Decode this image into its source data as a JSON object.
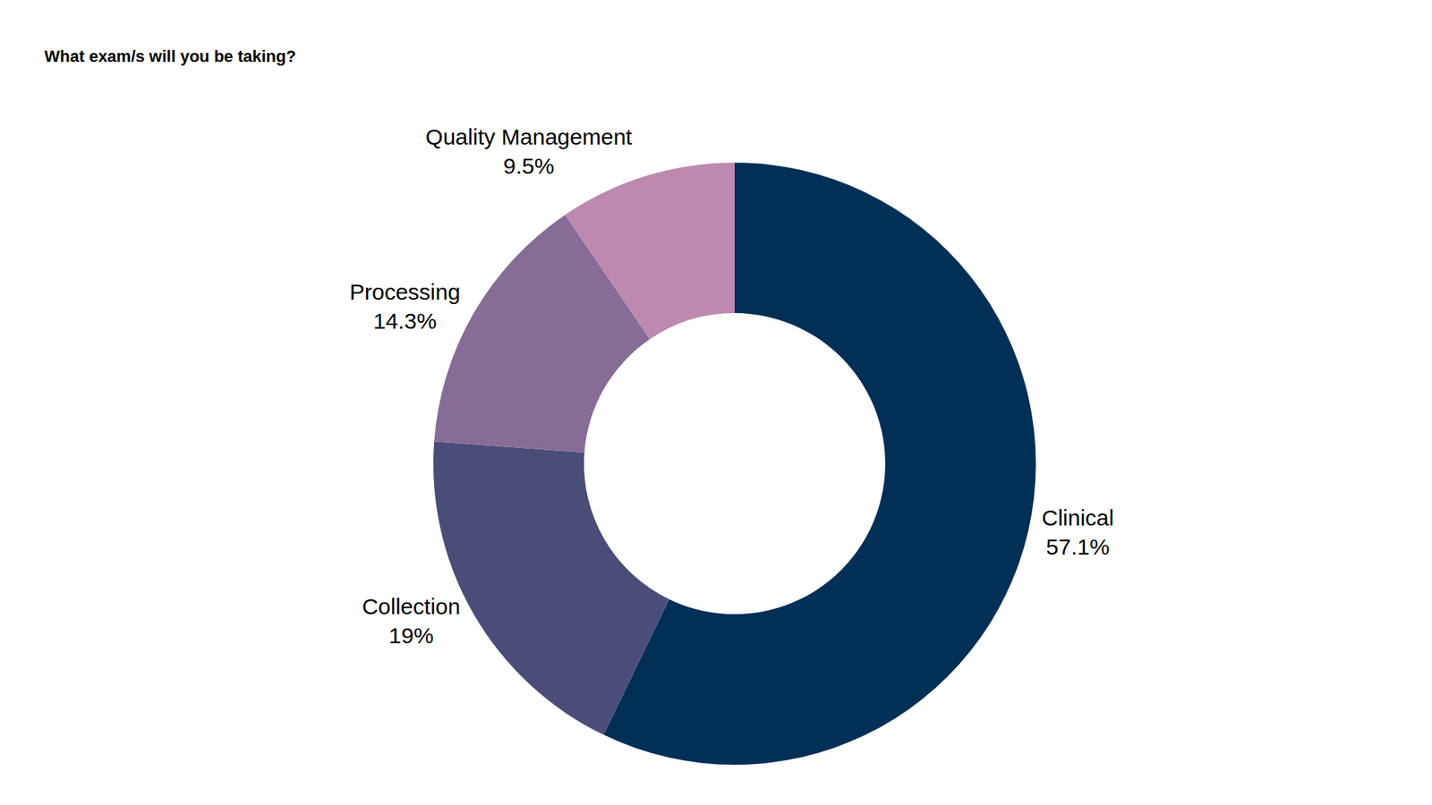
{
  "chart_data": {
    "type": "pie",
    "title": "What exam/s will you be taking?",
    "categories": [
      "Clinical",
      "Collection",
      "Processing",
      "Quality Management"
    ],
    "values": [
      57.1,
      19,
      14.3,
      9.5
    ],
    "value_labels": [
      "57.1%",
      "19%",
      "14.3%",
      "9.5%"
    ],
    "colors": [
      "#012f56",
      "#4a4d78",
      "#876c96",
      "#bd89b0"
    ],
    "data_labels": true
  }
}
